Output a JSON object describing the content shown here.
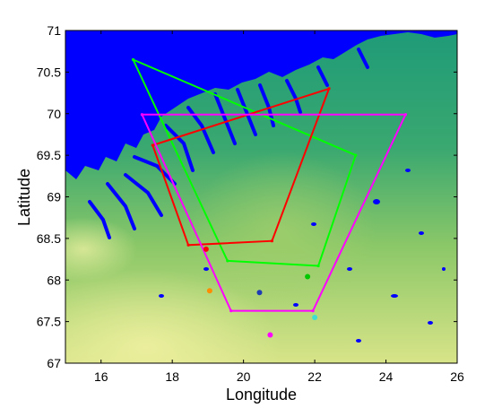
{
  "chart_data": {
    "type": "scatter",
    "xlabel": "Longitude",
    "ylabel": "Latitude",
    "xlim": [
      15,
      26
    ],
    "ylim": [
      67,
      71
    ],
    "xticks": [
      16,
      18,
      20,
      22,
      24,
      26
    ],
    "yticks": [
      67,
      67.5,
      68,
      68.5,
      69,
      69.5,
      70,
      70.5,
      71
    ],
    "xtick_labels": [
      "16",
      "18",
      "20",
      "22",
      "24",
      "26"
    ],
    "ytick_labels": [
      "67",
      "67.5",
      "68",
      "68.5",
      "69",
      "69.5",
      "70",
      "70.5",
      "71"
    ],
    "background": "elevation map of northern Scandinavia (Norwegian Sea coast top-left, inland terrain green-yellow)",
    "colors": {
      "sea": "#0000ff",
      "lowland": "#2e9e6e",
      "upland": "#9ccc68",
      "highland": "#e2e68a",
      "green_polygon": "#00ff00",
      "red_polygon": "#ff0000",
      "magenta_polygon": "#ff00ff"
    },
    "polygons": [
      {
        "color": "#00ff00",
        "points": [
          [
            16.9,
            70.65
          ],
          [
            23.15,
            69.5
          ],
          [
            22.1,
            68.17
          ],
          [
            19.55,
            68.23
          ],
          [
            16.9,
            70.65
          ]
        ]
      },
      {
        "color": "#ff0000",
        "points": [
          [
            17.45,
            69.62
          ],
          [
            22.4,
            70.3
          ],
          [
            20.8,
            68.47
          ],
          [
            18.45,
            68.42
          ],
          [
            17.45,
            69.62
          ]
        ]
      },
      {
        "color": "#ff00ff",
        "points": [
          [
            17.15,
            69.99
          ],
          [
            24.55,
            69.99
          ],
          [
            21.95,
            67.63
          ],
          [
            19.65,
            67.63
          ],
          [
            17.15,
            69.99
          ]
        ]
      }
    ],
    "markers": [
      {
        "x": 18.95,
        "y": 68.37,
        "color": "#ff0000"
      },
      {
        "x": 21.8,
        "y": 68.04,
        "color": "#00c800"
      },
      {
        "x": 20.45,
        "y": 67.85,
        "color": "#1e3cb4"
      },
      {
        "x": 19.05,
        "y": 67.87,
        "color": "#ff8c00"
      },
      {
        "x": 22.0,
        "y": 67.55,
        "color": "#40e0d0"
      },
      {
        "x": 20.75,
        "y": 67.34,
        "color": "#ff00ff"
      }
    ]
  }
}
